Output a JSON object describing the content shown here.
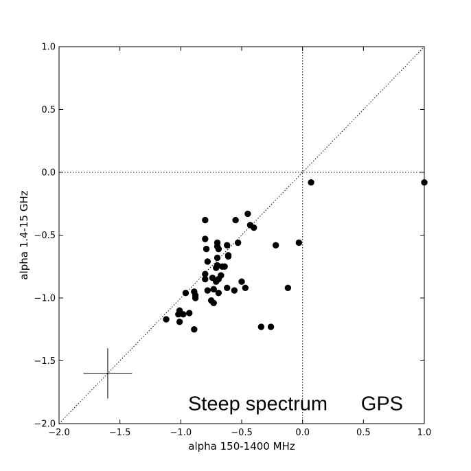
{
  "chart_data": {
    "type": "scatter",
    "title": "",
    "xlabel": "alpha 150-1400 MHz",
    "ylabel": "alpha 1.4-15 GHz",
    "xlim": [
      -2.0,
      1.0
    ],
    "ylim": [
      -2.0,
      1.0
    ],
    "x_ticks": [
      -2.0,
      -1.5,
      -1.0,
      -0.5,
      0.0,
      0.5,
      1.0
    ],
    "y_ticks": [
      -2.0,
      -1.5,
      -1.0,
      -0.5,
      0.0,
      0.5,
      1.0
    ],
    "x_tick_labels": [
      "−2.0",
      "−1.5",
      "−1.0",
      "−0.5",
      "0.0",
      "0.5",
      "1.0"
    ],
    "y_tick_labels": [
      "−2.0",
      "−1.5",
      "−1.0",
      "−0.5",
      "0.0",
      "0.5",
      "1.0"
    ],
    "grid": false,
    "reference_lines": {
      "diagonal": [
        [
          -2.0,
          -2.0
        ],
        [
          1.0,
          1.0
        ]
      ],
      "vertical_x": 0.0,
      "horizontal_y": 0.0,
      "style": "dotted"
    },
    "error_cross": {
      "x": -1.6,
      "y": -1.6,
      "x_err": 0.2,
      "y_err": 0.2
    },
    "annotations": [
      {
        "text": "Steep spectrum",
        "x": -0.94,
        "y": -1.84
      },
      {
        "text": "GPS",
        "x": 0.48,
        "y": -1.84
      }
    ],
    "marker_color": "#000000",
    "series": [
      {
        "x": [
          0.07,
          1.0,
          -0.8,
          -0.45,
          -0.55,
          -0.43,
          -0.4,
          -0.53,
          -0.8,
          -0.7,
          -0.62,
          -0.79,
          -0.7,
          -0.69,
          -0.61,
          -0.61,
          -0.78,
          -0.7,
          -0.71,
          -0.66,
          -0.64,
          -0.7,
          -0.8,
          -0.67,
          -0.74,
          -0.69,
          -0.71,
          -0.8,
          -0.5,
          -0.73,
          -0.62,
          -0.56,
          -0.47,
          -0.78,
          -0.89,
          -0.69,
          -0.96,
          -0.88,
          -0.88,
          -1.01,
          -0.75,
          -0.73,
          -1.02,
          -1.01,
          -0.98,
          -0.93,
          -1.12,
          -0.89,
          -0.22,
          -0.03,
          -0.12,
          -0.34,
          -0.26
        ],
        "y": [
          -0.08,
          -0.08,
          -0.38,
          -0.33,
          -0.38,
          -0.42,
          -0.44,
          -0.56,
          -0.53,
          -0.56,
          -0.58,
          -0.61,
          -0.59,
          -0.61,
          -0.66,
          -0.67,
          -0.71,
          -0.74,
          -0.76,
          -0.75,
          -0.75,
          -0.68,
          -0.81,
          -0.82,
          -0.84,
          -0.85,
          -0.87,
          -0.85,
          -0.87,
          -0.93,
          -0.92,
          -0.94,
          -0.92,
          -0.94,
          -0.95,
          -0.96,
          -0.96,
          -0.98,
          -1.0,
          -1.1,
          -1.02,
          -1.04,
          -1.13,
          -1.19,
          -1.13,
          -1.12,
          -1.17,
          -1.25,
          -0.58,
          -0.56,
          -0.92,
          -1.23,
          -1.23
        ]
      }
    ]
  }
}
